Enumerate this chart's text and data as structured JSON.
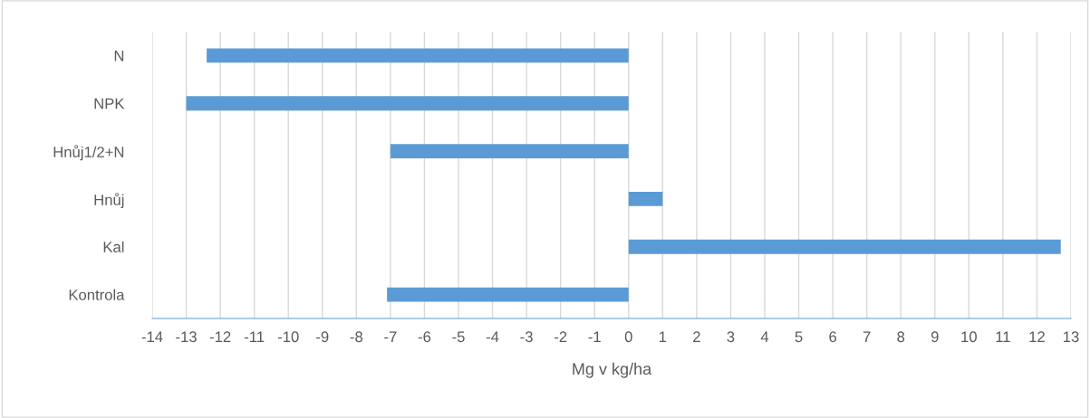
{
  "chart_data": {
    "type": "bar",
    "orientation": "horizontal",
    "xlabel": "Mg v kg/ha",
    "categories": [
      "N",
      "NPK",
      "Hnůj1/2+N",
      "Hnůj",
      "Kal",
      "Kontrola"
    ],
    "values": [
      -12.4,
      -13.0,
      -7.0,
      1.0,
      12.7,
      -7.1
    ],
    "color": "#5b9bd5",
    "xlim": [
      -14,
      13
    ],
    "xticks": [
      -14,
      -13,
      -12,
      -11,
      -10,
      -9,
      -8,
      -7,
      -6,
      -5,
      -4,
      -3,
      -2,
      -1,
      0,
      1,
      2,
      3,
      4,
      5,
      6,
      7,
      8,
      9,
      10,
      11,
      12,
      13
    ],
    "grid": "x",
    "legend": false
  }
}
